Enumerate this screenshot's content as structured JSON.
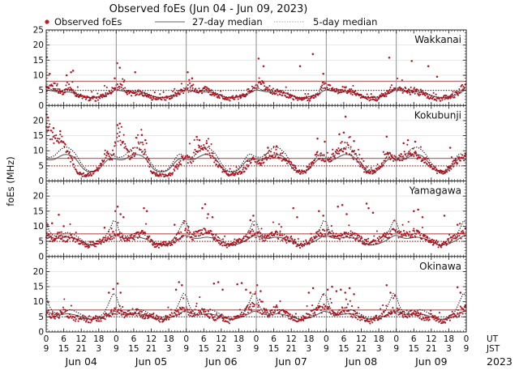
{
  "title": "Observed foEs (Jun 04 - Jun 09, 2023)",
  "legend": [
    {
      "label": "Observed foEs",
      "type": "dot",
      "color": "#b22222"
    },
    {
      "label": "27-day median",
      "type": "solid-line",
      "color": "#808080"
    },
    {
      "label": "5-day median",
      "type": "dotted-line",
      "color": "#909090"
    }
  ],
  "axes": {
    "ylabel": "foEs (MHz)",
    "ymin": 0,
    "ymax": 25,
    "ytick_major": 5,
    "ytick_minor": 1,
    "x_days": [
      "Jun 04",
      "Jun 05",
      "Jun 06",
      "Jun 07",
      "Jun 08",
      "Jun 09"
    ],
    "ut_ticks": [
      "0",
      "6",
      "12",
      "18"
    ],
    "jst_ticks": [
      "9",
      "15",
      "21",
      "3"
    ],
    "end_ut": "0",
    "end_jst": "9",
    "ut_label": "UT",
    "jst_label": "JST",
    "year_label": "2023",
    "hours_per_day": 24,
    "grid": "on"
  },
  "colors": {
    "observed": "#b2121f",
    "observed_legend_text": "#b22222",
    "median27": "#555555",
    "median5": "#1a1a1a",
    "refline_solid": "#bd7272",
    "refline_dotted": "#8b1a1a",
    "day_grid": "#8f8f8f",
    "h_grid": "#e3e3e3",
    "frame": "#222222"
  },
  "chart_data": [
    {
      "type": "scatter",
      "station": "Wakkanai",
      "x_unit": "hours since Jun 04 00:00 UT",
      "refline_solid": 8.0,
      "refline_dotted": 5.0,
      "observed_hourly_by_day": [
        [
          5.5,
          5.5,
          6,
          6.5,
          5,
          4.5,
          4.5,
          6.5,
          6,
          5,
          4,
          3.5,
          3,
          2.5,
          2.5,
          2,
          2.5,
          2,
          2.5,
          3,
          3.5,
          4,
          4.5,
          5.5
        ],
        [
          6,
          6.5,
          6,
          5,
          4.5,
          4,
          4.5,
          4,
          4.5,
          4,
          3.5,
          3,
          2.5,
          2.5,
          2,
          2,
          2.5,
          2,
          2.5,
          3,
          3.5,
          4,
          4.5,
          5
        ],
        [
          5.5,
          5,
          6,
          5.5,
          5,
          4.5,
          5.5,
          5,
          4.5,
          4,
          3.5,
          3,
          3,
          2.5,
          2.5,
          2,
          2.5,
          3,
          2.5,
          3,
          3.5,
          4.5,
          5,
          5.5
        ],
        [
          6,
          6.5,
          7,
          6,
          5.5,
          5,
          4.5,
          4.5,
          4,
          4,
          3.5,
          3,
          3,
          2.5,
          2.5,
          2,
          2,
          2.5,
          2,
          2.5,
          3,
          3.5,
          5,
          7
        ],
        [
          6.5,
          6,
          5.5,
          5,
          4.5,
          5,
          5.5,
          5,
          4.5,
          4.5,
          4,
          3.5,
          3,
          2.5,
          2.5,
          2,
          2.5,
          2,
          2.5,
          3,
          3.5,
          4,
          5.5,
          6
        ],
        [
          6,
          5.5,
          5,
          5.5,
          5,
          4.5,
          5,
          4.5,
          4,
          4,
          3.5,
          3,
          2.5,
          2.5,
          2,
          2,
          2.5,
          3,
          2.5,
          3,
          3.5,
          4,
          5,
          6.5
        ]
      ],
      "spikes": [
        [
          0.2,
          16
        ],
        [
          1.2,
          10.5
        ],
        [
          7,
          10
        ],
        [
          8.5,
          11
        ],
        [
          9.2,
          11.5
        ],
        [
          23.5,
          9
        ],
        [
          24.3,
          14
        ],
        [
          25.2,
          12.5
        ],
        [
          30.5,
          11
        ],
        [
          48.5,
          11
        ],
        [
          50,
          9
        ],
        [
          72.8,
          15.5
        ],
        [
          74.5,
          13
        ],
        [
          87,
          13
        ],
        [
          91.4,
          17
        ],
        [
          95,
          10.5
        ],
        [
          117.6,
          15.8
        ],
        [
          125.3,
          14.7
        ],
        [
          131,
          13
        ],
        [
          134,
          9.5
        ]
      ],
      "median27_diurnal": [
        5.2,
        5,
        4.8,
        4.6,
        4.5,
        4.4,
        4.4,
        4.5,
        4.4,
        4.2,
        4,
        3.6,
        3.2,
        2.9,
        2.7,
        2.6,
        2.6,
        2.7,
        2.8,
        3,
        3.3,
        3.7,
        4.2,
        4.8
      ],
      "median5_diurnal": [
        6,
        5.6,
        5.2,
        5,
        4.9,
        4.8,
        4.8,
        5,
        4.9,
        4.6,
        4.3,
        3.8,
        3.4,
        3,
        2.8,
        2.7,
        2.7,
        2.8,
        3,
        3.2,
        3.6,
        4.1,
        4.8,
        5.7
      ]
    },
    {
      "type": "scatter",
      "station": "Kokubunji",
      "x_unit": "hours since Jun 04 00:00 UT",
      "refline_solid": 7.5,
      "refline_dotted": 5.0,
      "observed_hourly_by_day": [
        [
          20,
          17,
          14.5,
          13,
          14,
          15,
          12,
          10,
          8,
          6,
          4,
          2.5,
          2,
          2,
          2,
          2.2,
          2.5,
          3,
          4.5,
          6.5,
          8.5,
          9,
          8,
          7.5
        ],
        [
          14,
          16,
          13,
          10,
          9,
          8.5,
          9.5,
          10,
          12,
          11,
          9,
          7,
          3,
          2.2,
          2,
          2,
          2,
          2,
          2,
          2.5,
          3.5,
          5,
          6.5,
          7
        ],
        [
          7,
          7.5,
          7,
          9,
          11,
          12,
          10,
          9,
          10,
          8,
          7,
          5.5,
          4,
          3,
          2.5,
          2.2,
          2.2,
          2.2,
          2.5,
          3,
          4,
          5.5,
          6.5,
          7
        ],
        [
          6.5,
          6,
          6.5,
          7.5,
          8.5,
          9,
          8.5,
          8,
          8.5,
          8,
          7.5,
          6.5,
          5.5,
          4.5,
          3.5,
          3,
          3,
          3.5,
          4.5,
          5.5,
          7,
          8.5,
          8,
          7.5
        ],
        [
          6.5,
          7,
          7.5,
          8,
          9.5,
          11,
          11.5,
          10.5,
          10,
          9,
          8,
          7,
          5,
          3.5,
          3,
          3,
          3,
          3.5,
          4.5,
          5.5,
          7.5,
          8.5,
          8,
          7.5
        ],
        [
          7,
          7.5,
          8,
          8.5,
          9,
          9.5,
          9,
          8.5,
          8,
          7.5,
          7,
          6,
          5,
          4,
          3.2,
          2.8,
          3,
          3.5,
          4,
          5,
          6,
          6.5,
          7,
          7.5
        ]
      ],
      "spikes": [
        [
          0.1,
          22
        ],
        [
          0.6,
          21
        ],
        [
          2.5,
          17.5
        ],
        [
          4.8,
          16.5
        ],
        [
          24.4,
          18.5
        ],
        [
          25.2,
          19
        ],
        [
          32.8,
          15.2
        ],
        [
          34,
          13.5
        ],
        [
          51.6,
          14.6
        ],
        [
          52.5,
          13.5
        ],
        [
          55,
          12.5
        ],
        [
          76,
          11
        ],
        [
          79,
          11.5
        ],
        [
          93,
          14
        ],
        [
          95.5,
          13
        ],
        [
          100.5,
          15.5
        ],
        [
          102,
          16
        ],
        [
          102.6,
          21.3
        ],
        [
          105.5,
          13.2
        ],
        [
          116.7,
          14.7
        ],
        [
          122.5,
          12.5
        ],
        [
          124,
          13.5
        ],
        [
          126.5,
          13
        ],
        [
          138.5,
          11
        ]
      ],
      "median27_diurnal": [
        7.2,
        7,
        7,
        7.2,
        7.8,
        8.3,
        8.7,
        8.8,
        8.6,
        8.2,
        7.4,
        6.2,
        4.8,
        3.8,
        3.2,
        3,
        3,
        3.2,
        3.8,
        4.8,
        6,
        7,
        7.4,
        7.4
      ],
      "median5_diurnal": [
        8,
        7.8,
        8,
        8.5,
        9.5,
        10.5,
        11,
        11.2,
        10.8,
        10,
        9,
        7.5,
        5.8,
        4.5,
        3.6,
        3.2,
        3.2,
        3.5,
        4.2,
        5.5,
        7,
        8.5,
        9,
        8.4
      ]
    },
    {
      "type": "scatter",
      "station": "Yamagawa",
      "x_unit": "hours since Jun 04 00:00 UT",
      "refline_solid": 7.5,
      "refline_dotted": 5.0,
      "observed_hourly_by_day": [
        [
          7,
          6,
          5.5,
          6,
          7,
          6.5,
          6,
          5.5,
          6.5,
          6,
          5.5,
          5,
          4.5,
          4,
          3.5,
          4,
          4.5,
          4,
          4.5,
          5,
          5.5,
          6,
          6.5,
          7
        ],
        [
          7.5,
          7,
          6.5,
          6,
          5.5,
          6,
          6.5,
          7,
          7.5,
          8,
          7,
          6,
          5,
          4,
          3.5,
          3.5,
          4,
          4.5,
          4,
          4.5,
          5.5,
          6.5,
          7,
          7.5
        ],
        [
          8,
          7,
          6.5,
          7,
          7.5,
          8,
          8.5,
          8,
          7.5,
          7,
          6.5,
          5.5,
          4.5,
          4,
          3.5,
          3.5,
          4,
          4.5,
          5,
          5.5,
          6,
          7,
          7.5,
          8
        ],
        [
          7.5,
          7,
          6.5,
          6,
          6.5,
          7,
          7.5,
          7,
          6.5,
          6,
          5.5,
          5.5,
          6,
          5,
          4,
          3.5,
          4,
          4.5,
          5,
          5.5,
          6.5,
          7.5,
          8,
          8
        ],
        [
          7.5,
          8,
          7.5,
          7,
          6.5,
          7,
          7.5,
          8,
          7.5,
          7,
          6.5,
          6,
          5.5,
          5,
          4.5,
          4,
          4.5,
          5,
          5.5,
          6,
          6.5,
          7,
          7.5,
          8
        ],
        [
          8,
          7.5,
          7,
          6.5,
          7,
          7.5,
          8,
          7.5,
          7,
          6.5,
          6,
          5.5,
          5,
          4.5,
          4,
          3.5,
          4,
          4.5,
          5,
          5.5,
          6,
          6.5,
          7,
          7.5
        ]
      ],
      "spikes": [
        [
          0.5,
          10.5
        ],
        [
          2,
          11
        ],
        [
          4.3,
          13.8
        ],
        [
          6,
          10
        ],
        [
          20,
          9.5
        ],
        [
          23.7,
          15
        ],
        [
          24.5,
          16.5
        ],
        [
          25.5,
          14
        ],
        [
          26.5,
          13
        ],
        [
          33.5,
          16
        ],
        [
          34.5,
          15
        ],
        [
          44,
          10.5
        ],
        [
          53.5,
          16
        ],
        [
          54.5,
          17.3
        ],
        [
          55.5,
          14
        ],
        [
          57,
          13
        ],
        [
          70,
          12
        ],
        [
          71,
          13.5
        ],
        [
          84.7,
          16
        ],
        [
          86,
          13
        ],
        [
          93.5,
          15
        ],
        [
          95,
          13.5
        ],
        [
          100,
          16.5
        ],
        [
          101.5,
          17
        ],
        [
          103,
          14
        ],
        [
          109.8,
          17.5
        ],
        [
          110.5,
          16
        ],
        [
          112,
          14.5
        ],
        [
          126,
          15
        ],
        [
          127.5,
          15.5
        ],
        [
          129,
          13
        ],
        [
          136.5,
          13.5
        ],
        [
          141,
          10.5
        ]
      ],
      "median27_diurnal": [
        7,
        6.6,
        6.2,
        6,
        6,
        6.1,
        6.3,
        6.4,
        6.3,
        6.1,
        5.8,
        5.4,
        5,
        4.5,
        4,
        3.8,
        3.8,
        4,
        4.2,
        4.6,
        5,
        5.6,
        6.2,
        6.8
      ],
      "median5_diurnal": [
        11.5,
        8.5,
        7.2,
        6.8,
        6.8,
        7,
        7.5,
        8,
        7.8,
        7.4,
        7,
        6.4,
        5.6,
        4.8,
        4.2,
        4,
        4,
        4.2,
        4.6,
        5.2,
        6.2,
        7.8,
        9.5,
        11.8
      ]
    },
    {
      "type": "scatter",
      "station": "Okinawa",
      "x_unit": "hours since Jun 04 00:00 UT",
      "refline_solid": 7.3,
      "refline_dotted": 5.0,
      "observed_hourly_by_day": [
        [
          6.5,
          6,
          5.5,
          5,
          5.5,
          6,
          6.5,
          6,
          5.5,
          5,
          4.5,
          4.5,
          5,
          4.5,
          4,
          3.5,
          4,
          4.5,
          4,
          4.5,
          5,
          5.5,
          6,
          6.5
        ],
        [
          7,
          6.5,
          6,
          5.5,
          6,
          6.5,
          7,
          6.5,
          6,
          5.5,
          5,
          5,
          5.5,
          5,
          4.5,
          4,
          4,
          4.5,
          5,
          5.5,
          6,
          6.5,
          7,
          7.5
        ],
        [
          7,
          6.5,
          6,
          6,
          6.5,
          7,
          6.5,
          6,
          5.5,
          5,
          4.5,
          4.5,
          5,
          4.5,
          4,
          3.5,
          4,
          4.5,
          5,
          5.5,
          6.5,
          7.5,
          8,
          8.5
        ],
        [
          8,
          7.5,
          7,
          6.5,
          6,
          6.5,
          7,
          7.5,
          7,
          6.5,
          6,
          5.5,
          5,
          4.5,
          4,
          4,
          4.5,
          5,
          5.5,
          6,
          6.5,
          7,
          7.5,
          8
        ],
        [
          7.5,
          7,
          6.5,
          6,
          6.5,
          7,
          7.5,
          7,
          6.5,
          6,
          5.5,
          5,
          4.5,
          4,
          3.5,
          3.5,
          4,
          4.5,
          5,
          5.5,
          6,
          6.5,
          7,
          7
        ],
        [
          7,
          6.5,
          6,
          5.5,
          5.5,
          6,
          6.5,
          6,
          5.5,
          5,
          4.5,
          4.5,
          5,
          4.5,
          4,
          3.5,
          3.5,
          4,
          4.5,
          5,
          5.5,
          6,
          6.5,
          7
        ]
      ],
      "spikes": [
        [
          21.5,
          13
        ],
        [
          23,
          14.2
        ],
        [
          24.5,
          16
        ],
        [
          25.5,
          13
        ],
        [
          44.5,
          14
        ],
        [
          45.5,
          16.5
        ],
        [
          46.5,
          15.5
        ],
        [
          57.5,
          16
        ],
        [
          59,
          16.5
        ],
        [
          60.5,
          14
        ],
        [
          65.5,
          15.8
        ],
        [
          67,
          16.2
        ],
        [
          68.5,
          14
        ],
        [
          70,
          13
        ],
        [
          72.3,
          15.5
        ],
        [
          73.5,
          13.5
        ],
        [
          90,
          13
        ],
        [
          91.5,
          14.5
        ],
        [
          96.5,
          14
        ],
        [
          98,
          15
        ],
        [
          99.5,
          13.5
        ],
        [
          101,
          14
        ],
        [
          102.5,
          13
        ],
        [
          104,
          14.5
        ],
        [
          105.5,
          12.5
        ],
        [
          116.7,
          15.5
        ],
        [
          118,
          13
        ],
        [
          119.5,
          12
        ],
        [
          141,
          14.8
        ],
        [
          142,
          13
        ]
      ],
      "median27_diurnal": [
        6.8,
        6.4,
        6,
        5.8,
        5.6,
        5.7,
        5.9,
        6,
        6,
        5.8,
        5.6,
        5.3,
        5,
        4.7,
        4.4,
        4.2,
        4.2,
        4.4,
        4.6,
        4.9,
        5.3,
        5.8,
        6.3,
        6.8
      ],
      "median5_diurnal": [
        12,
        8.8,
        7,
        6.3,
        6,
        6,
        6.4,
        7,
        7.4,
        7.2,
        6.8,
        6.3,
        5.8,
        5.2,
        4.6,
        4.2,
        4.2,
        4.5,
        5,
        5.6,
        6.6,
        8.5,
        10.8,
        12.8
      ]
    }
  ]
}
